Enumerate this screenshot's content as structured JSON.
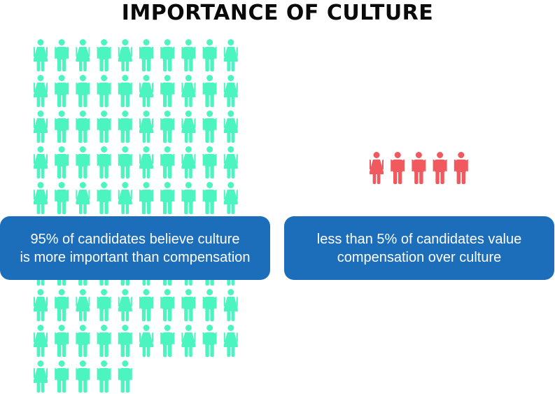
{
  "title": "IMPORTANCE OF CULTURE",
  "colors": {
    "majority": "#4cf5c0",
    "minority": "#f05a5e",
    "callout": "#1c6eba"
  },
  "chart_data": {
    "type": "pictogram",
    "title": "IMPORTANCE OF CULTURE",
    "series": [
      {
        "color": "#4cf5c0",
        "icon_count": 95,
        "percent": 95
      },
      {
        "color": "#f05a5e",
        "icon_count": 5,
        "percent": 5
      }
    ],
    "annotations": [
      "95% of candidates believe culture is more important than compensation",
      "less than 5% of candidates value compensation over culture"
    ]
  },
  "callouts": {
    "left": {
      "line1": "95% of candidates believe culture",
      "line2": "is more important than compensation"
    },
    "right": {
      "line1": "less than 5% of candidates value",
      "line2": "compensation over culture"
    }
  }
}
